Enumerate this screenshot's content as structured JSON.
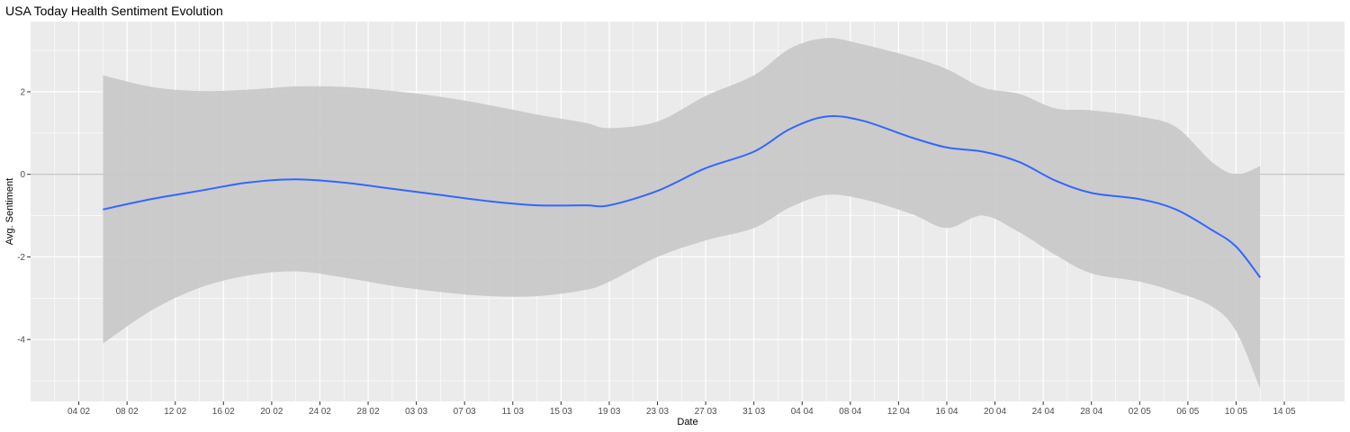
{
  "chart_data": {
    "type": "line",
    "title": "USA Today Health Sentiment Evolution",
    "xlabel": "Date",
    "ylabel": "Avg. Sentiment",
    "x_axis": {
      "type": "date",
      "range": [
        "2020-01-31",
        "2020-05-19"
      ],
      "ticks": [
        {
          "date": "2020-02-04",
          "label": "04 02"
        },
        {
          "date": "2020-02-08",
          "label": "08 02"
        },
        {
          "date": "2020-02-12",
          "label": "12 02"
        },
        {
          "date": "2020-02-16",
          "label": "16 02"
        },
        {
          "date": "2020-02-20",
          "label": "20 02"
        },
        {
          "date": "2020-02-24",
          "label": "24 02"
        },
        {
          "date": "2020-02-28",
          "label": "28 02"
        },
        {
          "date": "2020-03-03",
          "label": "03 03"
        },
        {
          "date": "2020-03-07",
          "label": "07 03"
        },
        {
          "date": "2020-03-11",
          "label": "11 03"
        },
        {
          "date": "2020-03-15",
          "label": "15 03"
        },
        {
          "date": "2020-03-19",
          "label": "19 03"
        },
        {
          "date": "2020-03-23",
          "label": "23 03"
        },
        {
          "date": "2020-03-27",
          "label": "27 03"
        },
        {
          "date": "2020-03-31",
          "label": "31 03"
        },
        {
          "date": "2020-04-04",
          "label": "04 04"
        },
        {
          "date": "2020-04-08",
          "label": "08 04"
        },
        {
          "date": "2020-04-12",
          "label": "12 04"
        },
        {
          "date": "2020-04-16",
          "label": "16 04"
        },
        {
          "date": "2020-04-20",
          "label": "20 04"
        },
        {
          "date": "2020-04-24",
          "label": "24 04"
        },
        {
          "date": "2020-04-28",
          "label": "28 04"
        },
        {
          "date": "2020-05-02",
          "label": "02 05"
        },
        {
          "date": "2020-05-06",
          "label": "06 05"
        },
        {
          "date": "2020-05-10",
          "label": "10 05"
        },
        {
          "date": "2020-05-14",
          "label": "14 05"
        }
      ]
    },
    "y_axis": {
      "range": [
        -5.5,
        3.7
      ],
      "ticks": [
        -4,
        -2,
        0,
        2
      ],
      "tick_labels": [
        "-4",
        "-2",
        "0",
        "2"
      ]
    },
    "reference_line": {
      "y": 0
    },
    "grid": true,
    "colors": {
      "panel": "#ebebeb",
      "grid": "#ffffff",
      "line": "#3366ff",
      "ribbon": "#c8c8c8",
      "reference": "#b3b3b3"
    },
    "series": [
      {
        "type": "smooth",
        "points": [
          {
            "x": "2020-02-06",
            "y": -0.85,
            "lo": -4.1,
            "hi": 2.4
          },
          {
            "x": "2020-02-10",
            "y": -0.6,
            "lo": -3.3,
            "hi": 2.12
          },
          {
            "x": "2020-02-14",
            "y": -0.4,
            "lo": -2.75,
            "hi": 2.02
          },
          {
            "x": "2020-02-18",
            "y": -0.2,
            "lo": -2.45,
            "hi": 2.05
          },
          {
            "x": "2020-02-22",
            "y": -0.12,
            "lo": -2.35,
            "hi": 2.13
          },
          {
            "x": "2020-02-26",
            "y": -0.2,
            "lo": -2.5,
            "hi": 2.12
          },
          {
            "x": "2020-03-01",
            "y": -0.35,
            "lo": -2.7,
            "hi": 2.02
          },
          {
            "x": "2020-03-05",
            "y": -0.5,
            "lo": -2.85,
            "hi": 1.88
          },
          {
            "x": "2020-03-09",
            "y": -0.65,
            "lo": -2.95,
            "hi": 1.68
          },
          {
            "x": "2020-03-13",
            "y": -0.75,
            "lo": -2.95,
            "hi": 1.45
          },
          {
            "x": "2020-03-17",
            "y": -0.75,
            "lo": -2.8,
            "hi": 1.25
          },
          {
            "x": "2020-03-19",
            "y": -0.75,
            "lo": -2.6,
            "hi": 1.12
          },
          {
            "x": "2020-03-23",
            "y": -0.4,
            "lo": -2.0,
            "hi": 1.28
          },
          {
            "x": "2020-03-27",
            "y": 0.15,
            "lo": -1.6,
            "hi": 1.9
          },
          {
            "x": "2020-03-31",
            "y": 0.55,
            "lo": -1.3,
            "hi": 2.4
          },
          {
            "x": "2020-04-03",
            "y": 1.1,
            "lo": -0.8,
            "hi": 3.05
          },
          {
            "x": "2020-04-06",
            "y": 1.4,
            "lo": -0.5,
            "hi": 3.3
          },
          {
            "x": "2020-04-09",
            "y": 1.3,
            "lo": -0.6,
            "hi": 3.15
          },
          {
            "x": "2020-04-13",
            "y": 0.9,
            "lo": -0.95,
            "hi": 2.85
          },
          {
            "x": "2020-04-16",
            "y": 0.65,
            "lo": -1.3,
            "hi": 2.55
          },
          {
            "x": "2020-04-19",
            "y": 0.55,
            "lo": -1.0,
            "hi": 2.1
          },
          {
            "x": "2020-04-22",
            "y": 0.3,
            "lo": -1.4,
            "hi": 1.95
          },
          {
            "x": "2020-04-25",
            "y": -0.15,
            "lo": -1.95,
            "hi": 1.6
          },
          {
            "x": "2020-04-28",
            "y": -0.45,
            "lo": -2.4,
            "hi": 1.55
          },
          {
            "x": "2020-05-02",
            "y": -0.6,
            "lo": -2.6,
            "hi": 1.4
          },
          {
            "x": "2020-05-05",
            "y": -0.85,
            "lo": -2.85,
            "hi": 1.15
          },
          {
            "x": "2020-05-08",
            "y": -1.35,
            "lo": -3.2,
            "hi": 0.3
          },
          {
            "x": "2020-05-10",
            "y": -1.75,
            "lo": -3.8,
            "hi": 0.0
          },
          {
            "x": "2020-05-12",
            "y": -2.5,
            "lo": -5.2,
            "hi": 0.2
          }
        ]
      }
    ]
  }
}
